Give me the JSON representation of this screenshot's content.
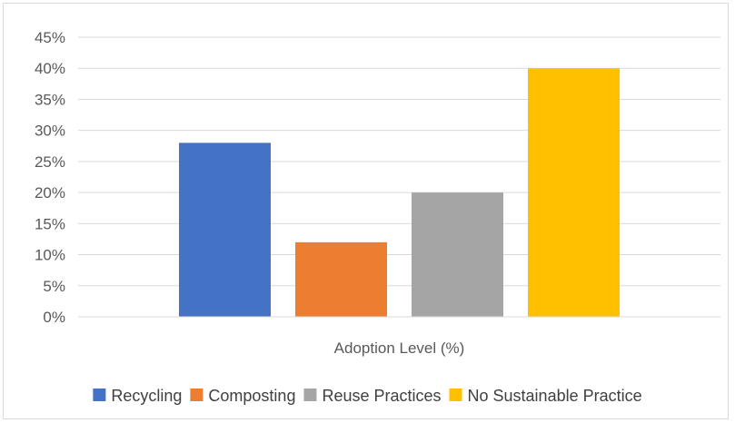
{
  "chart_data": {
    "type": "bar",
    "xlabel": "Adoption Level (%)",
    "ylabel": "",
    "ylim": [
      0,
      45
    ],
    "y_tick_step": 5,
    "y_tick_format": "percent",
    "grid": true,
    "legend_position": "bottom",
    "categories": [
      "Adoption Level (%)"
    ],
    "series": [
      {
        "name": "Recycling",
        "values": [
          28
        ],
        "color": "#4472c4"
      },
      {
        "name": "Composting",
        "values": [
          12
        ],
        "color": "#ed7d31"
      },
      {
        "name": "Reuse Practices",
        "values": [
          20
        ],
        "color": "#a5a5a5"
      },
      {
        "name": "No Sustainable Practice",
        "values": [
          40
        ],
        "color": "#ffc000"
      }
    ]
  }
}
